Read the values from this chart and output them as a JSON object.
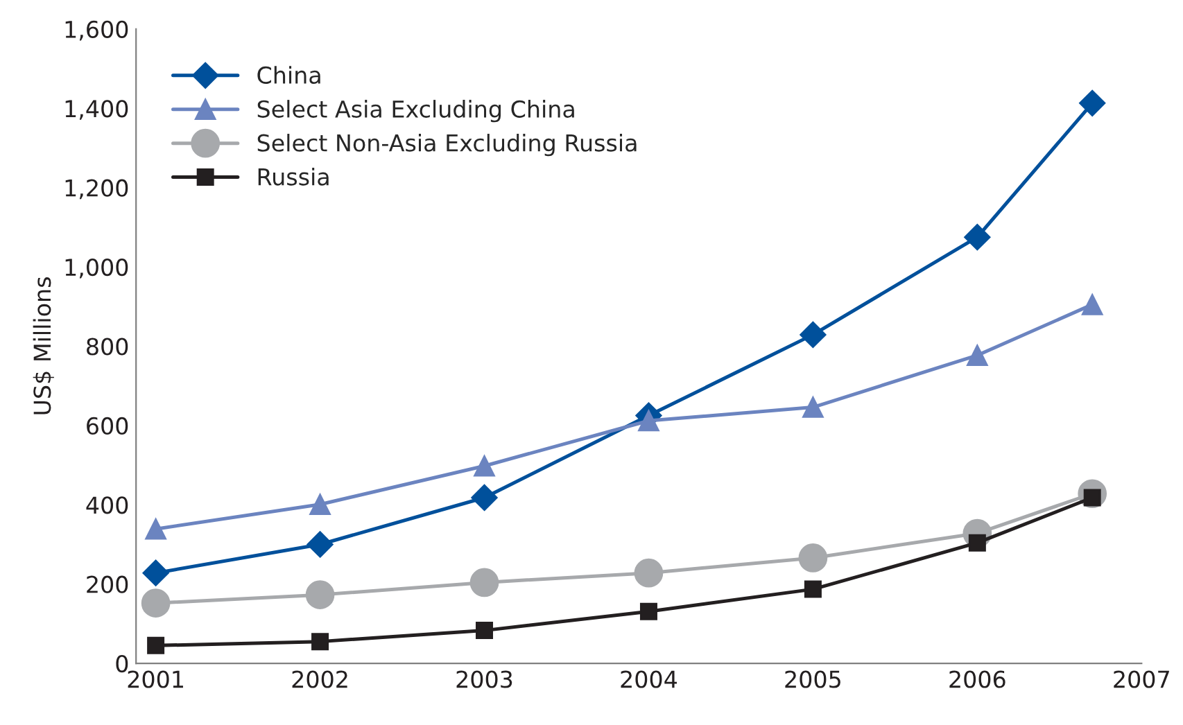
{
  "chart_data": {
    "type": "line",
    "ylabel": "US$ Millions",
    "x": [
      2001,
      2002,
      2003,
      2004,
      2005,
      2006,
      2006.7
    ],
    "xlim": [
      2000.88,
      2007
    ],
    "xticks": [
      2001,
      2002,
      2003,
      2004,
      2005,
      2006,
      2007
    ],
    "ylim": [
      0,
      1600
    ],
    "yticks": [
      0,
      {
        "value": 200,
        "label": "200"
      },
      {
        "value": 400,
        "label": "400"
      },
      {
        "value": 600,
        "label": "600"
      },
      {
        "value": 800,
        "label": "800"
      },
      {
        "value": 1000,
        "label": "1,000"
      },
      {
        "value": 1200,
        "label": "1,200"
      },
      {
        "value": 1400,
        "label": "1,400"
      },
      {
        "value": 1600,
        "label": "1,600"
      }
    ],
    "grid": false,
    "legend": "top left",
    "line_style": "solid",
    "series": [
      {
        "name": "China",
        "color": "#00509b",
        "marker": "diamond",
        "values": [
          228,
          300,
          418,
          625,
          829,
          1075,
          1413
        ]
      },
      {
        "name": "Select Asia Excluding China",
        "color": "#6b84c0",
        "marker": "triangle",
        "values": [
          339,
          401,
          498,
          612,
          646,
          777,
          905
        ]
      },
      {
        "name": "Select Non-Asia Excluding Russia",
        "color": "#a7a9ac",
        "marker": "circle",
        "values": [
          152,
          173,
          204,
          228,
          266,
          328,
          428
        ]
      },
      {
        "name": "Russia",
        "color": "#231f20",
        "marker": "square",
        "values": [
          45,
          55,
          83,
          131,
          187,
          304,
          418
        ]
      }
    ]
  }
}
